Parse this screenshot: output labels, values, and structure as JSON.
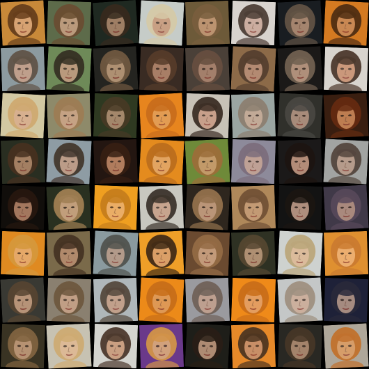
{
  "grid": {
    "rows": 8,
    "cols": 8,
    "background": "#000000",
    "tiles": [
      {
        "bg": "#c9893a",
        "hair": "#5a3418",
        "skin": "#d9a57a",
        "tilt": -3
      },
      {
        "bg": "#5e6b4a",
        "hair": "#6b4a2e",
        "skin": "#c8a183",
        "tilt": 2
      },
      {
        "bg": "#1f2a22",
        "hair": "#3a2a1e",
        "skin": "#b08a6e",
        "tilt": -4
      },
      {
        "bg": "#c7ccc9",
        "hair": "#d8c9a4",
        "skin": "#c99a7c",
        "tilt": 3
      },
      {
        "bg": "#6e5a3a",
        "hair": "#7a5f3e",
        "skin": "#c69b78",
        "tilt": -2
      },
      {
        "bg": "#d9d3cf",
        "hair": "#3a2a22",
        "skin": "#caa89a",
        "tilt": 2
      },
      {
        "bg": "#1a1d22",
        "hair": "#6c5a4a",
        "skin": "#b89279",
        "tilt": -3
      },
      {
        "bg": "#d47a22",
        "hair": "#3e2412",
        "skin": "#c88a5a",
        "tilt": 3
      },
      {
        "bg": "#8d9aa0",
        "hair": "#5b4a3c",
        "skin": "#c7a08a",
        "tilt": -2
      },
      {
        "bg": "#6f8a58",
        "hair": "#2e241c",
        "skin": "#c49c82",
        "tilt": 3
      },
      {
        "bg": "#252520",
        "hair": "#7a6046",
        "skin": "#c2a07e",
        "tilt": -3
      },
      {
        "bg": "#3a2c24",
        "hair": "#5a3e2c",
        "skin": "#b88a70",
        "tilt": 2
      },
      {
        "bg": "#4a4038",
        "hair": "#6a5040",
        "skin": "#b08872",
        "tilt": -2
      },
      {
        "bg": "#8c6a48",
        "hair": "#4e3a2c",
        "skin": "#b98f78",
        "tilt": 3
      },
      {
        "bg": "#1c1a18",
        "hair": "#7d6a58",
        "skin": "#c4a088",
        "tilt": -3
      },
      {
        "bg": "#d9d4ce",
        "hair": "#3a2418",
        "skin": "#c99070",
        "tilt": 2
      },
      {
        "bg": "#d2c9a2",
        "hair": "#cfa66a",
        "skin": "#d8ae8c",
        "tilt": 3
      },
      {
        "bg": "#8f8a6a",
        "hair": "#a07a52",
        "skin": "#cda588",
        "tilt": -2
      },
      {
        "bg": "#2e3a22",
        "hair": "#4a3a26",
        "skin": "#b49276",
        "tilt": 2
      },
      {
        "bg": "#e8861e",
        "hair": "#c46a1c",
        "skin": "#e2a05a",
        "tilt": -3
      },
      {
        "bg": "#c9c2b8",
        "hair": "#2a1a12",
        "skin": "#c89a84",
        "tilt": 2
      },
      {
        "bg": "#9aa6a2",
        "hair": "#8a7a6a",
        "skin": "#c8ab96",
        "tilt": -2
      },
      {
        "bg": "#30302c",
        "hair": "#4c4a46",
        "skin": "#b89886",
        "tilt": 3
      },
      {
        "bg": "#3a1e10",
        "hair": "#6a2c12",
        "skin": "#d08a5a",
        "tilt": -3
      },
      {
        "bg": "#2a2e22",
        "hair": "#4a3020",
        "skin": "#b48a6c",
        "tilt": -2
      },
      {
        "bg": "#8f9ca4",
        "hair": "#3a2a1e",
        "skin": "#c29c84",
        "tilt": 3
      },
      {
        "bg": "#241612",
        "hair": "#3a2014",
        "skin": "#c48a68",
        "tilt": -2
      },
      {
        "bg": "#e48b1e",
        "hair": "#b56a1e",
        "skin": "#e2a86a",
        "tilt": 3
      },
      {
        "bg": "#6f8a3a",
        "hair": "#a26a3a",
        "skin": "#cf9c70",
        "tilt": -3
      },
      {
        "bg": "#8e8a9a",
        "hair": "#7a6a78",
        "skin": "#c6a494",
        "tilt": 2
      },
      {
        "bg": "#1c1a1a",
        "hair": "#1e1410",
        "skin": "#c89c86",
        "tilt": -2
      },
      {
        "bg": "#a2a4a2",
        "hair": "#4a3a30",
        "skin": "#b89a88",
        "tilt": 3
      },
      {
        "bg": "#120e0c",
        "hair": "#2a1810",
        "skin": "#b8866a",
        "tilt": 2
      },
      {
        "bg": "#2a3020",
        "hair": "#b08a5a",
        "skin": "#d6ae88",
        "tilt": -3
      },
      {
        "bg": "#f0a020",
        "hair": "#c07a1c",
        "skin": "#eab070",
        "tilt": 2
      },
      {
        "bg": "#c9c8c0",
        "hair": "#2a2018",
        "skin": "#c8a088",
        "tilt": -2
      },
      {
        "bg": "#2e261e",
        "hair": "#a07a52",
        "skin": "#cda484",
        "tilt": 3
      },
      {
        "bg": "#b0885a",
        "hair": "#6a4a32",
        "skin": "#c69c78",
        "tilt": -2
      },
      {
        "bg": "#141414",
        "hair": "#1c1612",
        "skin": "#c4a08c",
        "tilt": 2
      },
      {
        "bg": "#403a48",
        "hair": "#5a4a5c",
        "skin": "#b89484",
        "tilt": -3
      },
      {
        "bg": "#e08a22",
        "hair": "#d49a40",
        "skin": "#e6ac72",
        "tilt": 2
      },
      {
        "bg": "#7a6a4a",
        "hair": "#3e2c1e",
        "skin": "#b88e70",
        "tilt": -2
      },
      {
        "bg": "#8a9aa0",
        "hair": "#4a4a44",
        "skin": "#b89a88",
        "tilt": 3
      },
      {
        "bg": "#f0a028",
        "hair": "#2a1c14",
        "skin": "#d8a070",
        "tilt": -3
      },
      {
        "bg": "#6a4a30",
        "hair": "#9a7048",
        "skin": "#cea684",
        "tilt": 2
      },
      {
        "bg": "#2e3224",
        "hair": "#5a4a34",
        "skin": "#c09c7e",
        "tilt": -2
      },
      {
        "bg": "#cfd2d0",
        "hair": "#b8a070",
        "skin": "#ddb894",
        "tilt": 3
      },
      {
        "bg": "#e09030",
        "hair": "#c87830",
        "skin": "#eeb278",
        "tilt": -2
      },
      {
        "bg": "#3a3a34",
        "hair": "#5a4632",
        "skin": "#c8a082",
        "tilt": -3
      },
      {
        "bg": "#8a8070",
        "hair": "#6a5238",
        "skin": "#c8a288",
        "tilt": 2
      },
      {
        "bg": "#b0b8ba",
        "hair": "#4a3a2c",
        "skin": "#c49e84",
        "tilt": -2
      },
      {
        "bg": "#ec8a1a",
        "hair": "#c26a1a",
        "skin": "#dc9a5e",
        "tilt": 3
      },
      {
        "bg": "#9a9aa0",
        "hair": "#6a5a50",
        "skin": "#c2a08e",
        "tilt": -2
      },
      {
        "bg": "#f08a1a",
        "hair": "#c46a1a",
        "skin": "#e2a06a",
        "tilt": 2
      },
      {
        "bg": "#c4c8c8",
        "hair": "#9a8a78",
        "skin": "#ccac98",
        "tilt": -3
      },
      {
        "bg": "#1e2238",
        "hair": "#2a2a3a",
        "skin": "#b89a8a",
        "tilt": 2
      },
      {
        "bg": "#3a3424",
        "hair": "#8a6a44",
        "skin": "#c8a07e",
        "tilt": 2
      },
      {
        "bg": "#c8c2b2",
        "hair": "#d0a86a",
        "skin": "#e0b892",
        "tilt": -3
      },
      {
        "bg": "#d4d4d0",
        "hair": "#3a2418",
        "skin": "#c89878",
        "tilt": 2
      },
      {
        "bg": "#6a3a8a",
        "hair": "#e0a040",
        "skin": "#e0b07a",
        "tilt": -2
      },
      {
        "bg": "#1e1e1a",
        "hair": "#2a1e16",
        "skin": "#c29a80",
        "tilt": 3
      },
      {
        "bg": "#e6892a",
        "hair": "#3a2a20",
        "skin": "#c49070",
        "tilt": -2
      },
      {
        "bg": "#2a2824",
        "hair": "#4a3828",
        "skin": "#b49076",
        "tilt": 2
      },
      {
        "bg": "#b0a89a",
        "hair": "#c46a1e",
        "skin": "#dc9c62",
        "tilt": -3
      }
    ]
  }
}
